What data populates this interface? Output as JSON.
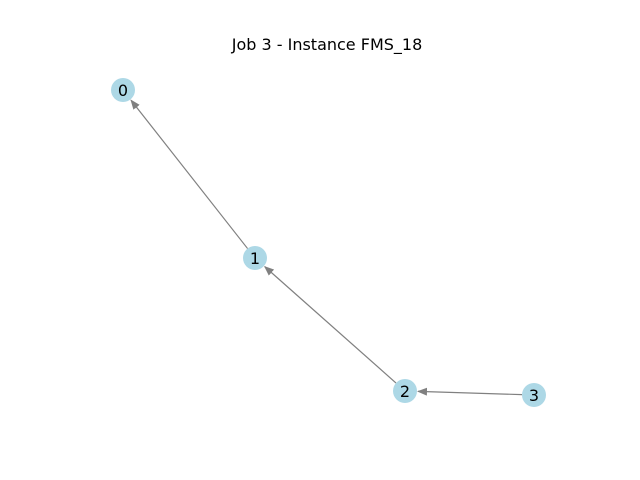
{
  "figure": {
    "title": "Job 3 - Instance FMS_18"
  },
  "graph": {
    "directed": true,
    "node_color": "#add8e6",
    "edge_color": "#808080",
    "nodes": [
      {
        "id": "0",
        "label": "0"
      },
      {
        "id": "1",
        "label": "1"
      },
      {
        "id": "2",
        "label": "2"
      },
      {
        "id": "3",
        "label": "3"
      }
    ],
    "edges": [
      {
        "from": "1",
        "to": "0"
      },
      {
        "from": "2",
        "to": "1"
      },
      {
        "from": "3",
        "to": "2"
      }
    ]
  }
}
